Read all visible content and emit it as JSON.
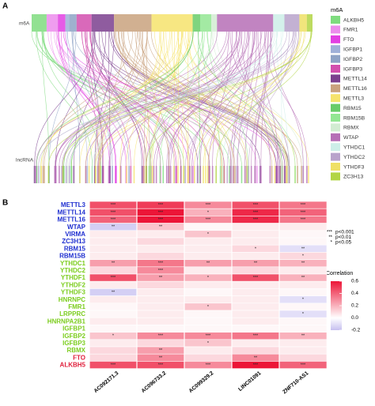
{
  "chart_data": [
    {
      "type": "sankey",
      "panel": "A",
      "source_label": "m6A",
      "target_label": "lncRNA",
      "legend_title": "m6A",
      "nodes": [
        "ALKBH5",
        "FMR1",
        "FTO",
        "IGFBP1",
        "IGFBP2",
        "IGFBP3",
        "METTL14",
        "METTL16",
        "METTL3",
        "RBM15",
        "RBM15B",
        "RBMX",
        "WTAP",
        "YTHDC1",
        "YTHDC2",
        "YTHDF3",
        "ZC3H13"
      ],
      "colors": [
        "#7fdc7f",
        "#ec8cec",
        "#e23fe2",
        "#9fb0d8",
        "#8ea3c6",
        "#d24fae",
        "#7b3f8e",
        "#c9a27e",
        "#f6e36c",
        "#69cc69",
        "#93e693",
        "#d2ecd2",
        "#b66fb6",
        "#cdeee8",
        "#b9a3cb",
        "#efe065",
        "#b2d544"
      ],
      "values": [
        8,
        6,
        4,
        2,
        4,
        8,
        12,
        20,
        22,
        4,
        6,
        3,
        30,
        6,
        8,
        4,
        3
      ]
    },
    {
      "type": "heatmap",
      "panel": "B",
      "colorbar_title": "Correlation",
      "rows": [
        "METTL3",
        "METTL14",
        "METTL16",
        "WTAP",
        "VIRMA",
        "ZC3H13",
        "RBM15",
        "RBM15B",
        "YTHDC1",
        "YTHDC2",
        "YTHDF1",
        "YTHDF2",
        "YTHDF3",
        "HNRNPC",
        "FMR1",
        "LRPPRC",
        "HNRNPA2B1",
        "IGFBP1",
        "IGFBP2",
        "IGFBP3",
        "RBMX",
        "FTO",
        "ALKBH5"
      ],
      "label_colors": [
        "#1f2fd0",
        "#1f2fd0",
        "#1f2fd0",
        "#1f2fd0",
        "#1f2fd0",
        "#1f2fd0",
        "#1f2fd0",
        "#1f2fd0",
        "#7ccd1e",
        "#7ccd1e",
        "#7ccd1e",
        "#7ccd1e",
        "#7ccd1e",
        "#7ccd1e",
        "#7ccd1e",
        "#7ccd1e",
        "#7ccd1e",
        "#7ccd1e",
        "#7ccd1e",
        "#7ccd1e",
        "#7ccd1e",
        "#e0203c",
        "#e0203c"
      ],
      "columns": [
        "AC092171.3",
        "AC096733.2",
        "AC099329.2",
        "LINC01091",
        "ZNF710-AS1"
      ],
      "values": [
        [
          0.45,
          0.5,
          0.3,
          0.45,
          0.35
        ],
        [
          0.45,
          0.6,
          0.2,
          0.55,
          0.4
        ],
        [
          0.4,
          0.6,
          0.3,
          0.55,
          0.35
        ],
        [
          -0.15,
          0.15,
          0.02,
          0.05,
          0.05
        ],
        [
          0.05,
          0.05,
          0.15,
          0.05,
          0.02
        ],
        [
          0.05,
          0.1,
          0.05,
          0.05,
          0.02
        ],
        [
          0.05,
          0.05,
          0.05,
          0.1,
          -0.1
        ],
        [
          0.05,
          0.1,
          0.05,
          0.05,
          0.1
        ],
        [
          0.25,
          0.35,
          0.25,
          0.25,
          0.2
        ],
        [
          0.1,
          0.3,
          0.05,
          0.1,
          0.05
        ],
        [
          0.45,
          0.25,
          0.2,
          0.45,
          0.2
        ],
        [
          0.05,
          0.1,
          0.05,
          0.05,
          0.05
        ],
        [
          -0.15,
          0.05,
          0.02,
          0.05,
          0.02
        ],
        [
          0.05,
          0.05,
          0.05,
          0.05,
          -0.1
        ],
        [
          0.02,
          0.05,
          0.15,
          0.05,
          0.02
        ],
        [
          0.02,
          0.05,
          0.02,
          0.05,
          -0.1
        ],
        [
          0.05,
          0.05,
          0.02,
          0.05,
          0.02
        ],
        [
          0.02,
          0.02,
          0.02,
          0.02,
          0.02
        ],
        [
          0.15,
          0.3,
          0.3,
          0.35,
          0.2
        ],
        [
          0.05,
          0.1,
          0.15,
          0.05,
          0.05
        ],
        [
          0.1,
          0.25,
          0.05,
          0.1,
          0.05
        ],
        [
          0.1,
          0.3,
          0.1,
          0.3,
          0.1
        ],
        [
          0.45,
          0.45,
          0.3,
          0.6,
          0.4
        ]
      ],
      "significance": [
        [
          "***",
          "***",
          "***",
          "***",
          "***"
        ],
        [
          "***",
          "***",
          "*",
          "***",
          "***"
        ],
        [
          "***",
          "***",
          "***",
          "***",
          "***"
        ],
        [
          "**",
          "**",
          null,
          null,
          null
        ],
        [
          null,
          null,
          "*",
          null,
          null
        ],
        [
          null,
          null,
          null,
          null,
          null
        ],
        [
          null,
          null,
          null,
          "*",
          "**"
        ],
        [
          null,
          null,
          null,
          null,
          "*"
        ],
        [
          "**",
          "***",
          "**",
          "**",
          "**"
        ],
        [
          null,
          "***",
          null,
          null,
          null
        ],
        [
          "***",
          "**",
          "*",
          "***",
          "**"
        ],
        [
          null,
          null,
          null,
          null,
          null
        ],
        [
          "**",
          null,
          null,
          null,
          null
        ],
        [
          null,
          null,
          null,
          null,
          "*"
        ],
        [
          null,
          null,
          "*",
          null,
          null
        ],
        [
          null,
          null,
          null,
          null,
          "*"
        ],
        [
          null,
          null,
          null,
          null,
          null
        ],
        [
          null,
          null,
          null,
          null,
          null
        ],
        [
          "*",
          "***",
          "***",
          "***",
          "**"
        ],
        [
          null,
          null,
          "*",
          null,
          null
        ],
        [
          null,
          "**",
          null,
          null,
          null
        ],
        [
          null,
          "**",
          null,
          "**",
          null
        ],
        [
          "***",
          "***",
          "***",
          "***",
          "***"
        ]
      ],
      "significance_legend": [
        {
          "symbol": "***",
          "label": "p<0.001"
        },
        {
          "symbol": "**",
          "label": "p<0.01"
        },
        {
          "symbol": "*",
          "label": "p<0.05"
        }
      ],
      "clim": [
        -0.2,
        0.6
      ],
      "cmid": 0,
      "colormap": {
        "low": "#c6bff0",
        "mid": "#ffffff",
        "high": "#ec1537"
      },
      "cticks": [
        {
          "value": 0.6,
          "label": "0.6"
        },
        {
          "value": 0.4,
          "label": "0.4"
        },
        {
          "value": 0.2,
          "label": "0.2"
        },
        {
          "value": 0,
          "label": "0.0"
        },
        {
          "value": -0.2,
          "label": "-0.2"
        }
      ]
    }
  ]
}
